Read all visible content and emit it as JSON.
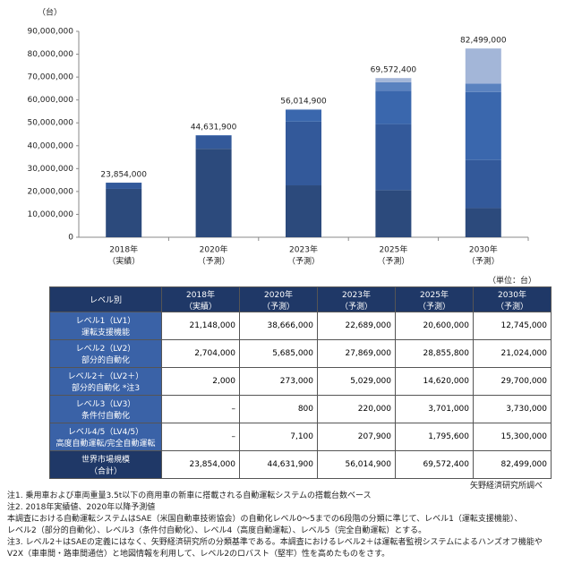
{
  "chart_data": {
    "type": "stacked_bar",
    "unit_label": "（台）",
    "categories": [
      "2018年",
      "2020年",
      "2023年",
      "2025年",
      "2030年"
    ],
    "category_notes": [
      "（実績）",
      "（予測）",
      "（予測）",
      "（予測）",
      "（予測）"
    ],
    "series": [
      {
        "color": "#2c4a7c",
        "values": [
          21148000,
          38666000,
          22689000,
          20600000,
          12745000
        ]
      },
      {
        "color": "#33599a",
        "values": [
          2704000,
          5685000,
          27869000,
          28855800,
          21024000
        ]
      },
      {
        "color": "#3a67ad",
        "values": [
          2000,
          273000,
          5029000,
          14620000,
          29700000
        ]
      },
      {
        "color": "#5a82bf",
        "values": [
          null,
          800,
          220000,
          3701000,
          3730000
        ]
      },
      {
        "color": "#a3b6d8",
        "values": [
          null,
          7100,
          207900,
          1795600,
          15300000
        ]
      }
    ],
    "total_labels": [
      "23,854,000",
      "44,631,900",
      "56,014,900",
      "69,572,400",
      "82,499,000"
    ],
    "ylim": [
      0,
      90000000
    ],
    "yticks": [
      0,
      {
        "value": 10000000,
        "label": "10,000,000"
      },
      {
        "value": 20000000,
        "label": "20,000,000"
      },
      {
        "value": 30000000,
        "label": "30,000,000"
      },
      {
        "value": 40000000,
        "label": "40,000,000"
      },
      {
        "value": 50000000,
        "label": "50,000,000"
      },
      {
        "value": 60000000,
        "label": "60,000,000"
      },
      {
        "value": 70000000,
        "label": "70,000,000"
      },
      {
        "value": 80000000,
        "label": "80,000,000"
      },
      {
        "value": 90000000,
        "label": "90,000,000"
      }
    ]
  },
  "table": {
    "unit": "（単位：台）",
    "header_label": "レベル別",
    "columns": [
      [
        "2018年",
        "（実績）"
      ],
      [
        "2020年",
        "（予測）"
      ],
      [
        "2023年",
        "（予測）"
      ],
      [
        "2025年",
        "（予測）"
      ],
      [
        "2030年",
        "（予測）"
      ]
    ],
    "rows": [
      {
        "label": [
          "レベル1（LV1）",
          "運転支援機能"
        ],
        "cells": [
          "21,148,000",
          "38,666,000",
          "22,689,000",
          "20,600,000",
          "12,745,000"
        ]
      },
      {
        "label": [
          "レベル2（LV2）",
          "部分的自動化"
        ],
        "cells": [
          "2,704,000",
          "5,685,000",
          "27,869,000",
          "28,855,800",
          "21,024,000"
        ]
      },
      {
        "label": [
          "レベル2＋（LV2＋）",
          "部分的自動化 *注3"
        ],
        "cells": [
          "2,000",
          "273,000",
          "5,029,000",
          "14,620,000",
          "29,700,000"
        ]
      },
      {
        "label": [
          "レベル3（LV3）",
          "条件付自動化"
        ],
        "cells": [
          "–",
          "800",
          "220,000",
          "3,701,000",
          "3,730,000"
        ]
      },
      {
        "label": [
          "レベル4/5（LV4/5）",
          "高度自動運転/完全自動運転"
        ],
        "cells": [
          "–",
          "7,100",
          "207,900",
          "1,795,600",
          "15,300,000"
        ]
      },
      {
        "label": [
          "世界市場規模",
          "（合計）"
        ],
        "cells": [
          "23,854,000",
          "44,631,900",
          "56,014,900",
          "69,572,400",
          "82,499,000"
        ]
      }
    ],
    "source": "矢野経済研究所調べ"
  },
  "notes": [
    "注1. 乗用車および車両重量3.5t以下の商用車の新車に搭載される自動運転システムの搭載台数ベース",
    "注2. 2018年実績値、2020年以降予測値",
    "本調査における自動運転システムはSAE（米国自動車技術協会）の自動化レベル0～5までの6段階の分類に準じて、レベル1（運転支援機能）、",
    "レベル2（部分的自動化）、レベル3（条件付自動化）、レベル4（高度自動運転）、レベル5（完全自動運転）とする。",
    "注3. レベル2＋はSAEの定義にはなく、矢野経済研究所の分類基準である。本調査におけるレベル2＋は運転者監視システムによるハンズオフ機能や",
    "V2X（車車間・路車間通信）と地図情報を利用して、レベル2のロバスト（堅牢）性を高めたものをさす。"
  ]
}
